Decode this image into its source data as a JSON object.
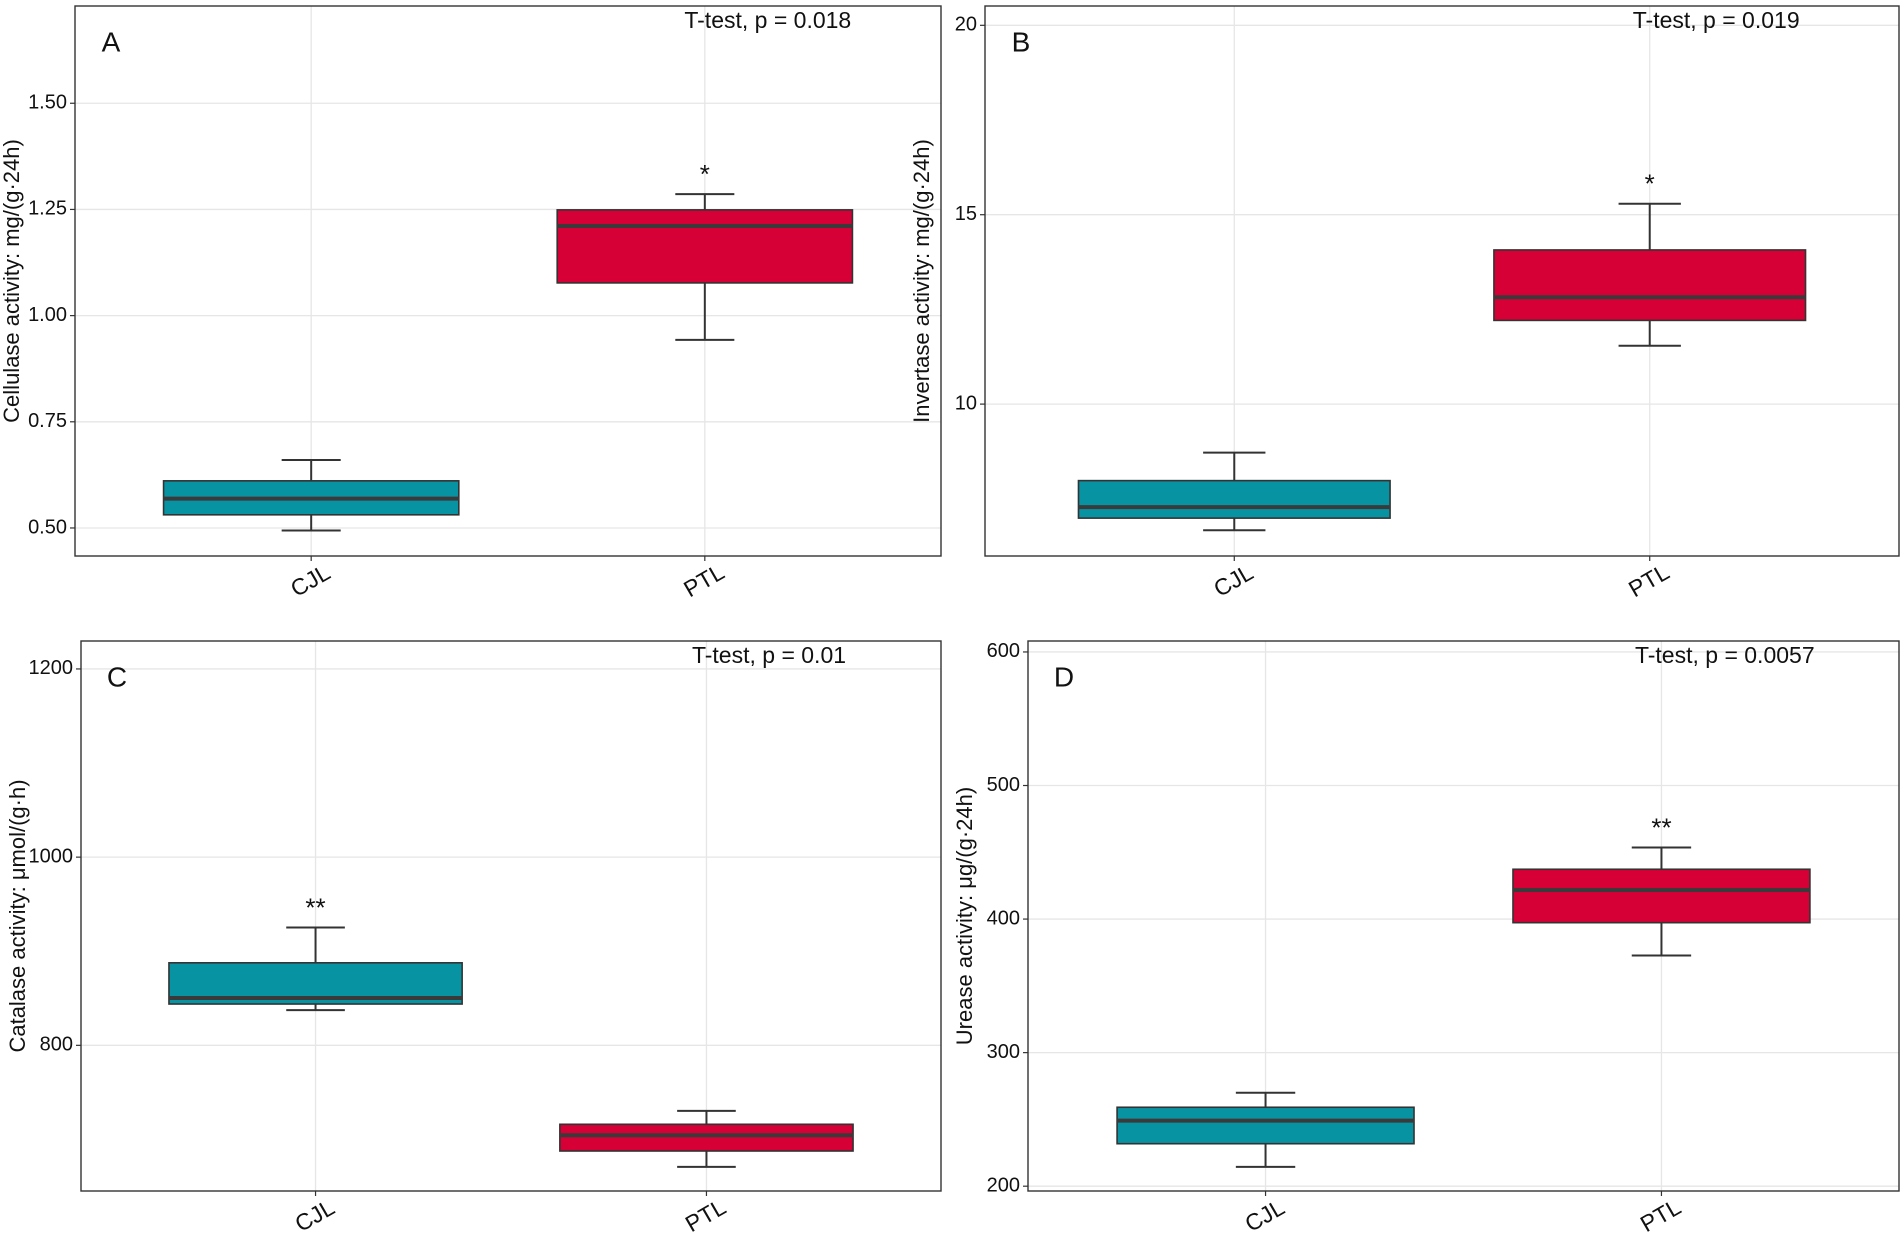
{
  "chart_data": [
    {
      "type": "box",
      "panel": "A",
      "annotation": "T-test, p = 0.018",
      "y_label": "Cellulase activity: mg/(g·24h)",
      "categories": [
        "CJL",
        "PTL"
      ],
      "colors": [
        "#0893a3",
        "#d70036"
      ],
      "boxes": [
        {
          "low": 0.494,
          "q1": 0.531,
          "median": 0.569,
          "q3": 0.611,
          "high": 0.66
        },
        {
          "low": 0.943,
          "q1": 1.077,
          "median": 1.211,
          "q3": 1.249,
          "high": 1.286
        }
      ],
      "significance": [
        null,
        "*"
      ],
      "ylim": [
        0.434,
        1.729
      ],
      "yticks": [
        {
          "value": 0.5,
          "label": "0.50"
        },
        {
          "value": 0.75,
          "label": "0.75"
        },
        {
          "value": 1,
          "label": "1.00"
        },
        {
          "value": 1.25,
          "label": "1.25"
        },
        {
          "value": 1.5,
          "label": "1.50"
        }
      ],
      "grid": true
    },
    {
      "type": "box",
      "panel": "B",
      "annotation": "T-test, p = 0.019",
      "y_label": "Invertase activity: mg/(g·24h)",
      "categories": [
        "CJL",
        "PTL"
      ],
      "colors": [
        "#0893a3",
        "#d70036"
      ],
      "boxes": [
        {
          "low": 6.67,
          "q1": 6.99,
          "median": 7.28,
          "q3": 7.98,
          "high": 8.72
        },
        {
          "low": 11.54,
          "q1": 12.21,
          "median": 12.82,
          "q3": 14.07,
          "high": 15.29
        }
      ],
      "significance": [
        null,
        "*"
      ],
      "ylim": [
        5.99,
        20.51
      ],
      "yticks": [
        10,
        15,
        20
      ],
      "grid": true
    },
    {
      "type": "box",
      "panel": "C",
      "annotation": "T-test, p = 0.01",
      "y_label": "Catalase activity: μmol/(g·h)",
      "categories": [
        "CJL",
        "PTL"
      ],
      "colors": [
        "#0893a3",
        "#d70036"
      ],
      "boxes": [
        {
          "low": 837.4,
          "q1": 843.9,
          "median": 850.3,
          "q3": 887.7,
          "high": 925.2
        },
        {
          "low": 670.9,
          "q1": 687.7,
          "median": 704.5,
          "q3": 716.1,
          "high": 730.3
        }
      ],
      "significance": [
        "**",
        null
      ],
      "ylim": [
        645.2,
        1229.7
      ],
      "yticks": [
        800,
        1000,
        1200
      ],
      "grid": true
    },
    {
      "type": "box",
      "panel": "D",
      "annotation": "T-test, p = 0.0057",
      "y_label": "Urease activity: μg/(g·24h)",
      "categories": [
        "CJL",
        "PTL"
      ],
      "colors": [
        "#0893a3",
        "#d70036"
      ],
      "boxes": [
        {
          "low": 214.5,
          "q1": 231.8,
          "median": 249.1,
          "q3": 259.1,
          "high": 270
        },
        {
          "low": 372.7,
          "q1": 397.3,
          "median": 421.8,
          "q3": 437.3,
          "high": 453.6
        }
      ],
      "significance": [
        null,
        "**"
      ],
      "ylim": [
        196.4,
        608.2
      ],
      "yticks": [
        200,
        300,
        400,
        500,
        600
      ],
      "grid": true
    }
  ]
}
